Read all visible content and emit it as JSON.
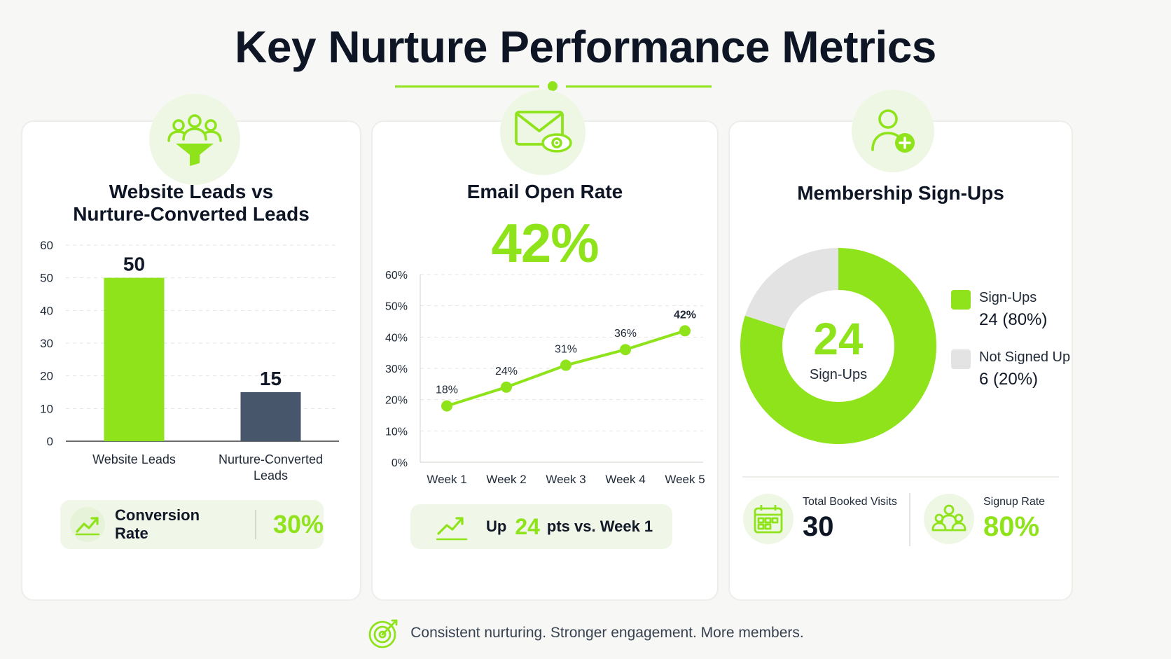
{
  "header": {
    "title": "Key Nurture Performance Metrics"
  },
  "colors": {
    "accent": "#8fe31a",
    "slate": "#48566b",
    "grey": "#e3e3e3",
    "badge_bg": "#eef7e4"
  },
  "panels": {
    "leads": {
      "title_line1": "Website Leads vs",
      "title_line2": "Nurture-Converted Leads",
      "icon": "users-funnel-icon",
      "conversion": {
        "label": "Conversion Rate",
        "value": "30%",
        "icon": "trend-up-icon"
      }
    },
    "email": {
      "title": "Email Open Rate",
      "headline": "42%",
      "icon": "mail-eye-icon",
      "summary": {
        "prefix": "Up",
        "value": "24",
        "suffix": "pts vs. Week 1",
        "icon": "trend-up-icon"
      }
    },
    "membership": {
      "title": "Membership Sign-Ups",
      "icon": "user-plus-icon",
      "center_value": "24",
      "center_label": "Sign-Ups",
      "legend": [
        {
          "name": "Sign-Ups",
          "value": "24 (80%)"
        },
        {
          "name": "Not Signed Up",
          "value": "6 (20%)"
        }
      ],
      "stats": [
        {
          "label": "Total Booked Visits",
          "value": "30",
          "icon": "calendar-icon"
        },
        {
          "label": "Signup Rate",
          "value": "80%",
          "icon": "group-icon"
        }
      ]
    }
  },
  "chart_data": [
    {
      "type": "bar",
      "categories": [
        "Website Leads",
        "Nurture-Converted Leads"
      ],
      "values": [
        50,
        15
      ],
      "data_labels": [
        "50",
        "15"
      ],
      "ylim": [
        0,
        60
      ],
      "yticks": [
        0,
        10,
        20,
        30,
        40,
        50,
        60
      ],
      "bar_colors": [
        "#8fe31a",
        "#48566b"
      ],
      "grid": true
    },
    {
      "type": "line",
      "x": [
        "Week 1",
        "Week 2",
        "Week 3",
        "Week 4",
        "Week 5"
      ],
      "y": [
        18,
        24,
        31,
        36,
        42
      ],
      "data_labels": [
        "18%",
        "24%",
        "31%",
        "36%",
        "42%"
      ],
      "ylim": [
        0,
        60
      ],
      "yticks": [
        "0%",
        "10%",
        "20%",
        "30%",
        "40%",
        "50%",
        "60%"
      ],
      "grid": true
    },
    {
      "type": "pie",
      "labels": [
        "Sign-Ups",
        "Not Signed Up"
      ],
      "values": [
        24,
        6
      ],
      "percent": [
        80,
        20
      ],
      "donut": true
    }
  ],
  "footer": {
    "text": "Consistent nurturing. Stronger engagement. More members.",
    "icon": "target-icon"
  }
}
